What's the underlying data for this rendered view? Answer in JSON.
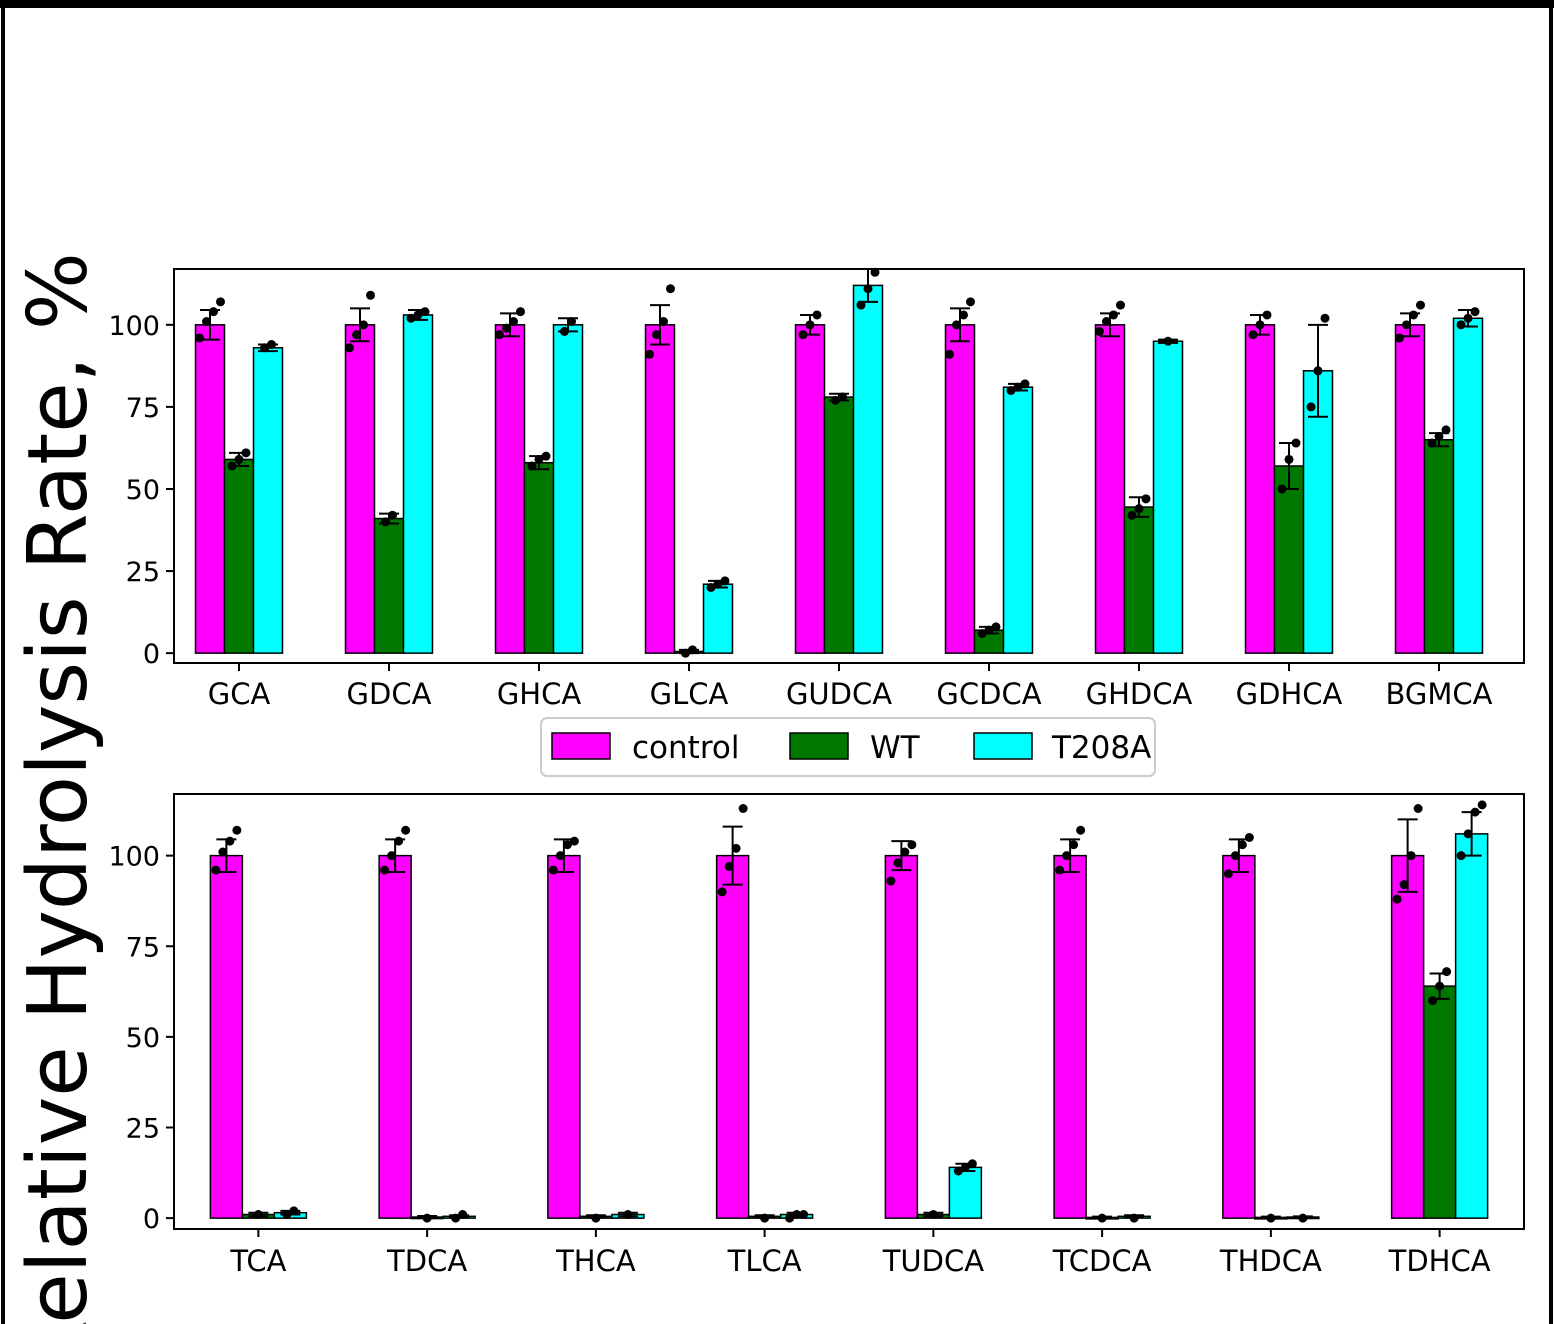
{
  "colors": {
    "control": "#ff00ff",
    "WT": "#007800",
    "T208A": "#00ffff"
  },
  "legend": {
    "placement": "center, between panels",
    "entries": [
      {
        "label": "control",
        "color": "#ff00ff"
      },
      {
        "label": "WT",
        "color": "#007800"
      },
      {
        "label": "T208A",
        "color": "#00ffff"
      }
    ]
  },
  "ylabel": "Relative Hydrolysis Rate, %",
  "chart_data": [
    {
      "type": "bar",
      "title": "",
      "xlabel": "",
      "ylabel": "Relative Hydrolysis Rate, %",
      "ylim": [
        -3,
        117
      ],
      "yticks": [
        0,
        25,
        50,
        75,
        100
      ],
      "categories": [
        "GCA",
        "GDCA",
        "GHCA",
        "GLCA",
        "GUDCA",
        "GCDCA",
        "GHDCA",
        "GDHCA",
        "BGMCA"
      ],
      "series": [
        {
          "name": "control",
          "values": [
            100,
            100,
            100,
            100,
            100,
            100,
            100,
            100,
            100
          ],
          "errors": [
            4.5,
            5,
            3.5,
            6,
            3,
            5,
            3.5,
            3,
            3.5
          ]
        },
        {
          "name": "WT",
          "values": [
            59,
            41,
            58,
            0.5,
            78,
            7,
            44.5,
            57,
            65
          ],
          "errors": [
            2,
            1.5,
            2,
            0.5,
            1,
            1,
            3,
            7,
            2
          ]
        },
        {
          "name": "T208A",
          "values": [
            93,
            103,
            100,
            21,
            112,
            81,
            95,
            86,
            102
          ],
          "errors": [
            1,
            1.5,
            2,
            1,
            5,
            1,
            0.5,
            14,
            2.5
          ]
        }
      ],
      "points": [
        [
          [
            96,
            101,
            104,
            107
          ],
          [
            57,
            59,
            61
          ],
          [
            93,
            94
          ]
        ],
        [
          [
            93,
            97,
            100,
            109
          ],
          [
            40,
            42
          ],
          [
            102,
            103,
            104
          ]
        ],
        [
          [
            97,
            99,
            101,
            104
          ],
          [
            57,
            59,
            60
          ],
          [
            98,
            101
          ]
        ],
        [
          [
            91,
            97,
            101,
            111
          ],
          [
            0,
            1
          ],
          [
            20,
            21,
            22
          ]
        ],
        [
          [
            97,
            100,
            103
          ],
          [
            77,
            78
          ],
          [
            106,
            111,
            116
          ]
        ],
        [
          [
            91,
            100,
            103,
            107
          ],
          [
            6,
            7,
            8
          ],
          [
            80,
            81,
            82
          ]
        ],
        [
          [
            98,
            101,
            103,
            106
          ],
          [
            42,
            44,
            47
          ],
          [
            95
          ]
        ],
        [
          [
            97,
            100,
            103
          ],
          [
            50,
            59,
            64
          ],
          [
            75,
            86,
            102
          ]
        ],
        [
          [
            96,
            100,
            103,
            106
          ],
          [
            64,
            66,
            68
          ],
          [
            100,
            102,
            104
          ]
        ]
      ]
    },
    {
      "type": "bar",
      "title": "",
      "xlabel": "",
      "ylabel": "Relative Hydrolysis Rate, %",
      "ylim": [
        -3,
        117
      ],
      "yticks": [
        0,
        25,
        50,
        75,
        100
      ],
      "categories": [
        "TCA",
        "TDCA",
        "THCA",
        "TLCA",
        "TUDCA",
        "TCDCA",
        "THDCA",
        "TDHCA"
      ],
      "series": [
        {
          "name": "control",
          "values": [
            100,
            100,
            100,
            100,
            100,
            100,
            100,
            100
          ],
          "errors": [
            4.5,
            4.5,
            4.5,
            8,
            4,
            4.5,
            4.5,
            10
          ]
        },
        {
          "name": "WT",
          "values": [
            1,
            0.3,
            0.5,
            0.5,
            1,
            0.2,
            0.2,
            64
          ],
          "errors": [
            0.5,
            0.3,
            0.3,
            0.3,
            0.5,
            0.2,
            0.2,
            3.5
          ]
        },
        {
          "name": "T208A",
          "values": [
            1.5,
            0.5,
            1,
            1,
            14,
            0.5,
            0.3,
            106
          ],
          "errors": [
            0.5,
            0.3,
            0.5,
            0.5,
            1,
            0.3,
            0.2,
            6
          ]
        }
      ],
      "points": [
        [
          [
            96,
            101,
            104,
            107
          ],
          [
            1
          ],
          [
            1,
            2
          ]
        ],
        [
          [
            96,
            100,
            104,
            107
          ],
          [
            0
          ],
          [
            0,
            1
          ]
        ],
        [
          [
            96,
            100,
            103,
            104
          ],
          [
            0
          ],
          [
            1
          ]
        ],
        [
          [
            90,
            97,
            102,
            113
          ],
          [
            0
          ],
          [
            0,
            1,
            1
          ]
        ],
        [
          [
            93,
            98,
            101,
            103
          ],
          [
            1
          ],
          [
            13,
            14,
            15
          ]
        ],
        [
          [
            96,
            100,
            103,
            107
          ],
          [
            0
          ],
          [
            0
          ]
        ],
        [
          [
            95,
            100,
            103,
            105
          ],
          [
            0
          ],
          [
            0
          ]
        ],
        [
          [
            88,
            92,
            100,
            113
          ],
          [
            60,
            64,
            68
          ],
          [
            100,
            106,
            112,
            114
          ]
        ]
      ]
    }
  ]
}
